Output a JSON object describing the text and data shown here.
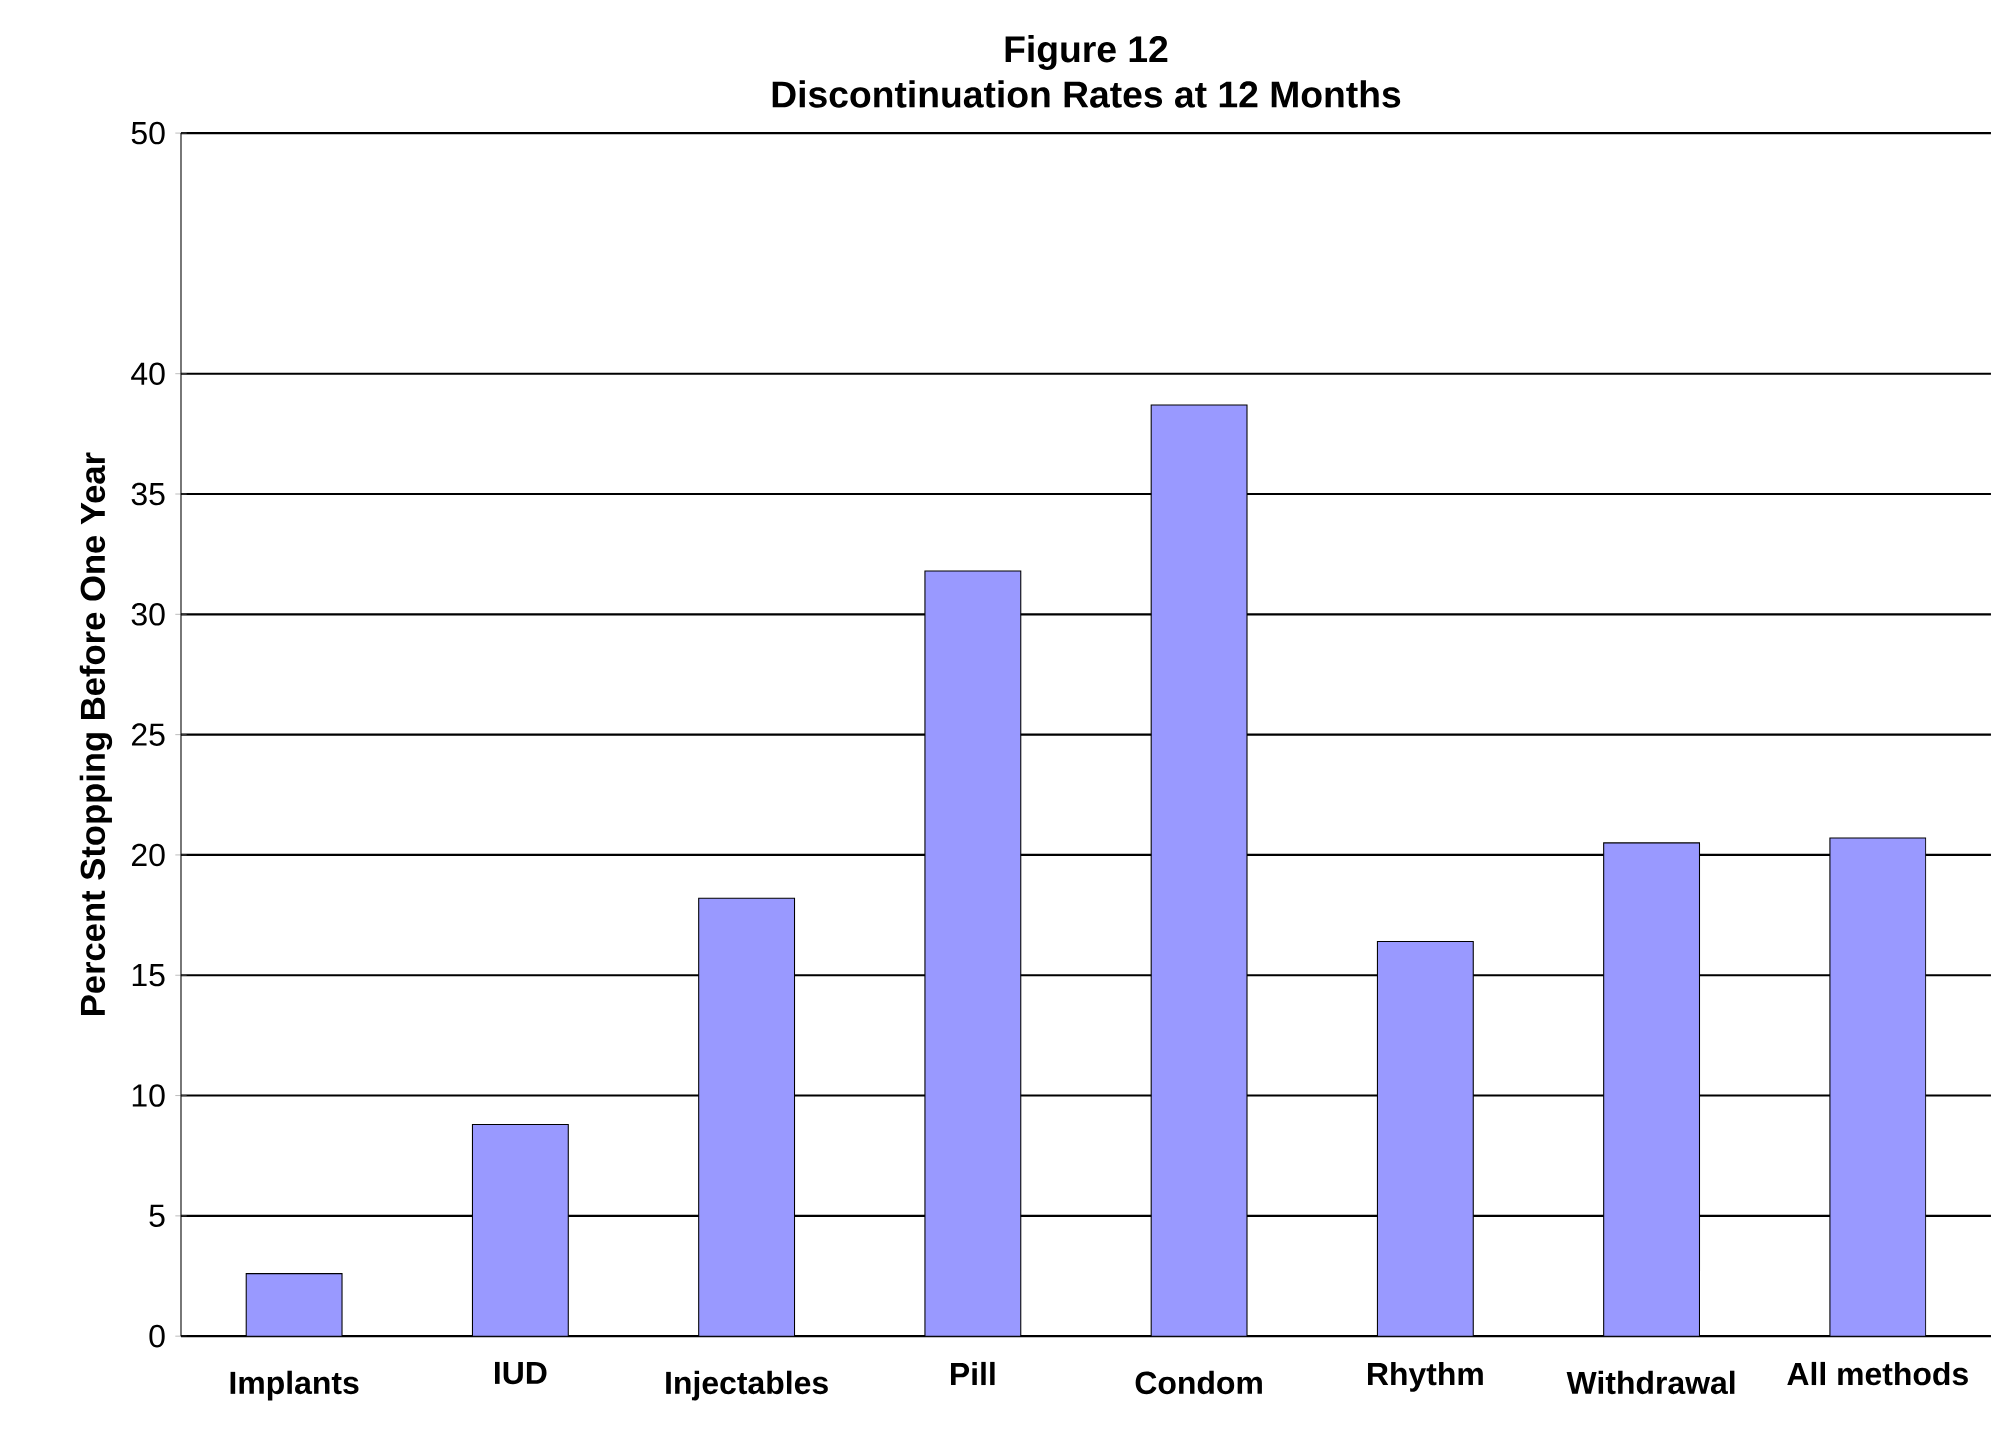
{
  "chart_data": {
    "type": "bar",
    "title": "Figure 12",
    "subtitle": "Discontinuation Rates at 12 Months",
    "ylabel": "Percent Stopping Before One Year",
    "categories": [
      "Implants",
      "IUD",
      "Injectables",
      "Pill",
      "Condom",
      "Rhythm",
      "Withdrawal",
      "All methods"
    ],
    "values": [
      2.6,
      8.8,
      18.2,
      31.8,
      38.7,
      16.4,
      20.5,
      20.7
    ],
    "color": "#9999ff",
    "ylim": [
      0,
      50
    ],
    "yticks": [
      0,
      5,
      10,
      15,
      20,
      25,
      30,
      35,
      40,
      50
    ],
    "grid": "y"
  }
}
